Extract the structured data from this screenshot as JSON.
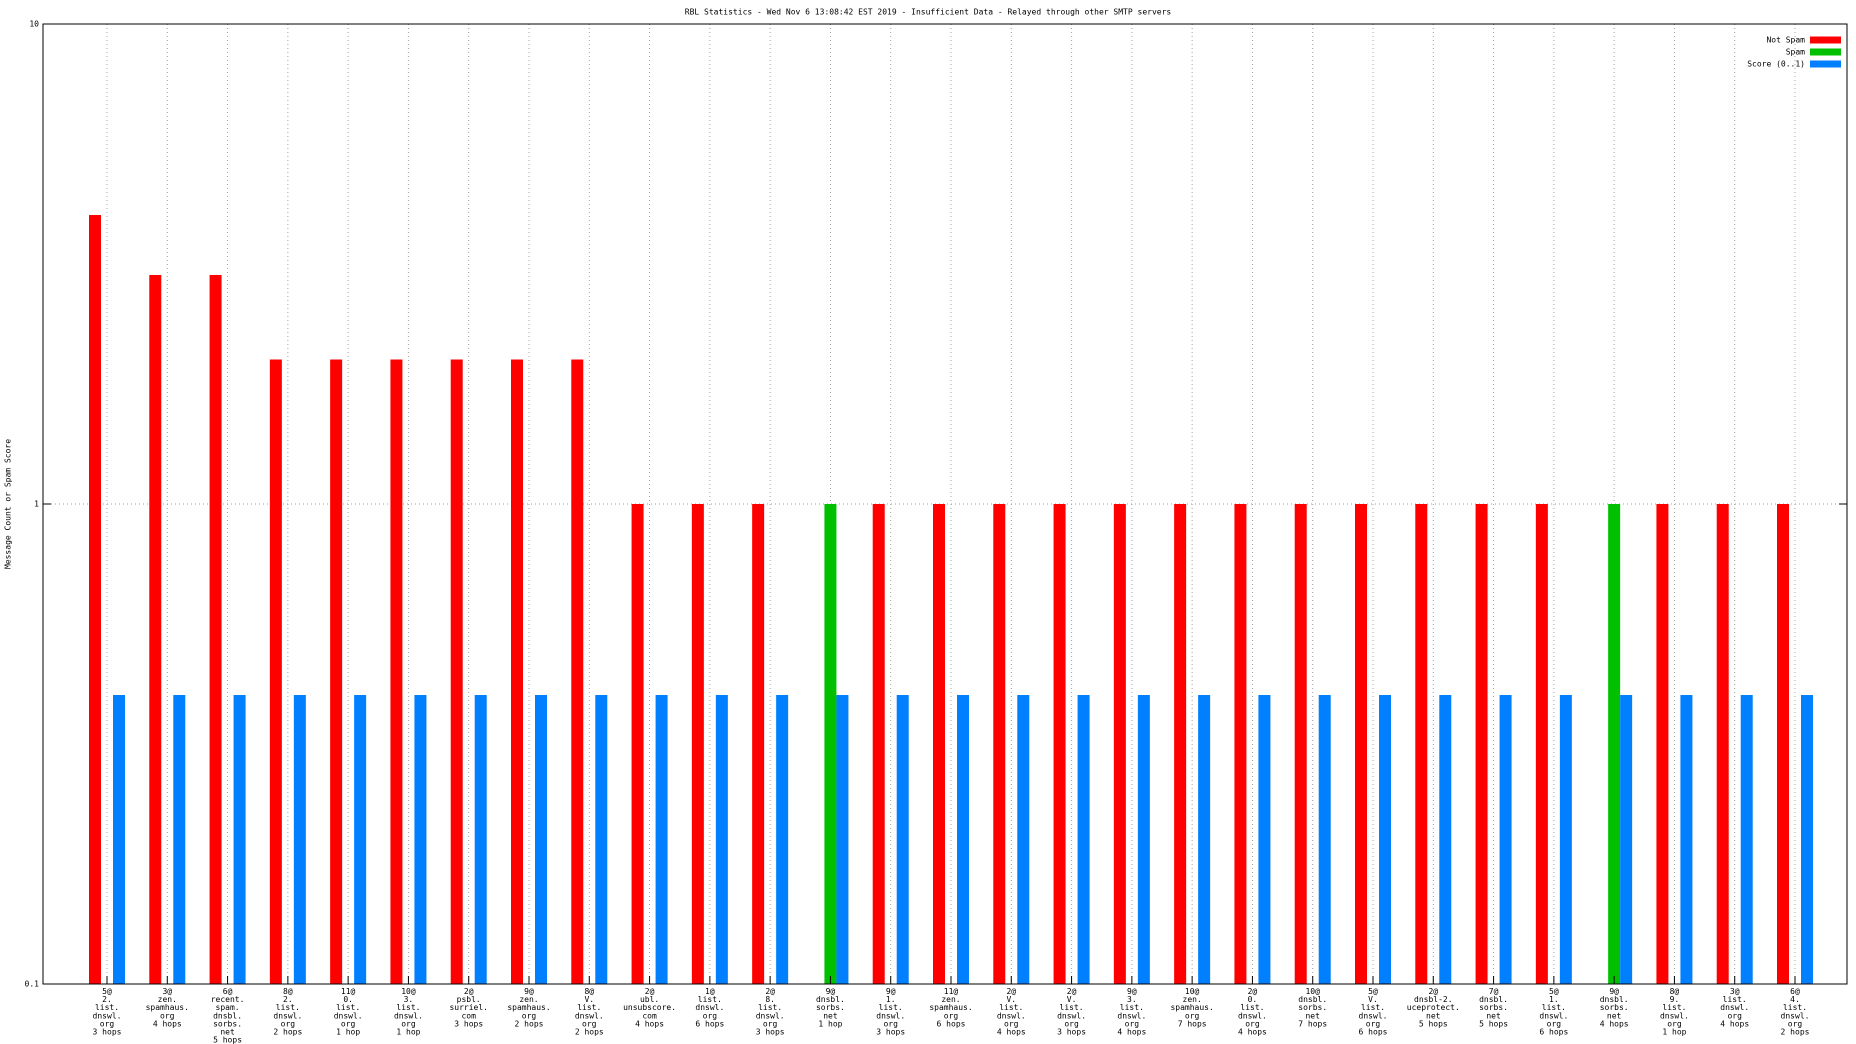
{
  "chart_data": {
    "type": "bar",
    "title": "RBL Statistics - Wed Nov  6 13:08:42 EST 2019 - Insufficient Data - Relayed through other SMTP servers",
    "y_label": "Message Count or Spam Score",
    "categories": [
      "5@\n2.\nlist.\ndnswl.\norg\n3 hops",
      "3@\nzen.\nspamhaus.\norg\n4 hops",
      "6@\nrecent.\nspam.\ndnsbl.\nsorbs.\nnet\n5 hops",
      "8@\n2.\nlist.\ndnswl.\norg\n2 hops",
      "11@\n0.\nlist.\ndnswl.\norg\n1 hop",
      "10@\n3.\nlist.\ndnswl.\norg\n1 hop",
      "2@\npsbl.\nsurriel.\ncom\n3 hops",
      "9@\nzen.\nspamhaus.\norg\n2 hops",
      "8@\nV.\nlist.\ndnswl.\norg\n2 hops",
      "2@\nubl.\nunsubscore.\ncom\n4 hops",
      "1@\nlist.\ndnswl.\norg\n6 hops",
      "2@\n8.\nlist.\ndnswl.\norg\n3 hops",
      "9@\ndnsbl.\nsorbs.\nnet\n1 hop",
      "9@\n1.\nlist.\ndnswl.\norg\n3 hops",
      "11@\nzen.\nspamhaus.\norg\n6 hops",
      "2@\nV.\nlist.\ndnswl.\norg\n4 hops",
      "2@\nV.\nlist.\ndnswl.\norg\n3 hops",
      "9@\n3.\nlist.\ndnswl.\norg\n4 hops",
      "10@\nzen.\nspamhaus.\norg\n7 hops",
      "2@\n0.\nlist.\ndnswl.\norg\n4 hops",
      "10@\ndnsbl.\nsorbs.\nnet\n7 hops",
      "5@\nV.\nlist.\ndnswl.\norg\n6 hops",
      "2@\ndnsbl-2.\nuceprotect.\nnet\n5 hops",
      "7@\ndnsbl.\nsorbs.\nnet\n5 hops",
      "5@\n1.\nlist.\ndnswl.\norg\n6 hops",
      "9@\ndnsbl.\nsorbs.\nnet\n4 hops",
      "8@\n9.\nlist.\ndnswl.\norg\n1 hop",
      "3@\nlist.\ndnswl.\norg\n4 hops",
      "6@\n4.\nlist.\ndnswl.\norg\n2 hops"
    ],
    "series": [
      {
        "name": "Not Spam",
        "color": "#ff0000",
        "values": [
          4,
          3,
          3,
          2,
          2,
          2,
          2,
          2,
          2,
          1,
          1,
          1,
          null,
          1,
          1,
          1,
          1,
          1,
          1,
          1,
          1,
          1,
          1,
          1,
          1,
          null,
          1,
          1,
          1
        ]
      },
      {
        "name": "Spam",
        "color": "#00c000",
        "values": [
          null,
          null,
          null,
          null,
          null,
          null,
          null,
          null,
          null,
          null,
          null,
          null,
          1,
          null,
          null,
          null,
          null,
          null,
          null,
          null,
          null,
          null,
          null,
          null,
          null,
          1,
          null,
          null,
          null
        ]
      },
      {
        "name": "Score (0..1)",
        "color": "#0080ff",
        "values": [
          0.4,
          0.4,
          0.4,
          0.4,
          0.4,
          0.4,
          0.4,
          0.4,
          0.4,
          0.4,
          0.4,
          0.4,
          0.4,
          0.4,
          0.4,
          0.4,
          0.4,
          0.4,
          0.4,
          0.4,
          0.4,
          0.4,
          0.4,
          0.4,
          0.4,
          0.4,
          0.4,
          0.4,
          0.4
        ]
      }
    ],
    "log_y": true,
    "ylim": [
      0.1,
      10
    ],
    "yticks": [
      0.1,
      1,
      10
    ],
    "grid": true,
    "legend": "top-right"
  }
}
